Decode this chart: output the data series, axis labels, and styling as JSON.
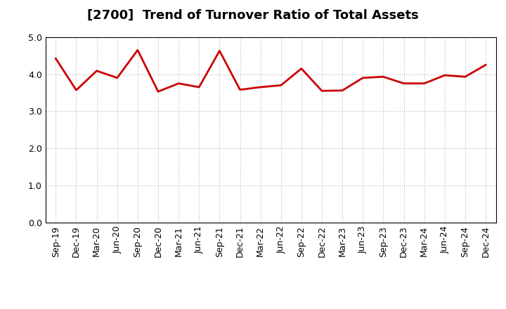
{
  "title": "[2700]  Trend of Turnover Ratio of Total Assets",
  "labels": [
    "Sep-19",
    "Dec-19",
    "Mar-20",
    "Jun-20",
    "Sep-20",
    "Dec-20",
    "Mar-21",
    "Jun-21",
    "Sep-21",
    "Dec-21",
    "Mar-22",
    "Jun-22",
    "Sep-22",
    "Dec-22",
    "Mar-23",
    "Jun-23",
    "Sep-23",
    "Dec-23",
    "Mar-24",
    "Jun-24",
    "Sep-24",
    "Dec-24"
  ],
  "values": [
    4.42,
    3.57,
    4.09,
    3.9,
    4.65,
    3.53,
    3.75,
    3.65,
    4.63,
    3.58,
    3.65,
    3.7,
    4.15,
    3.55,
    3.56,
    3.9,
    3.93,
    3.75,
    3.75,
    3.97,
    3.93,
    4.25
  ],
  "line_color": "#cc0000",
  "line_width": 2.0,
  "ylim": [
    0.0,
    5.0
  ],
  "yticks": [
    0.0,
    1.0,
    2.0,
    3.0,
    4.0,
    5.0
  ],
  "background_color": "#ffffff",
  "grid_color": "#bbbbbb",
  "title_fontsize": 13,
  "tick_fontsize": 9,
  "title_color": "#000000",
  "spine_color": "#000000"
}
